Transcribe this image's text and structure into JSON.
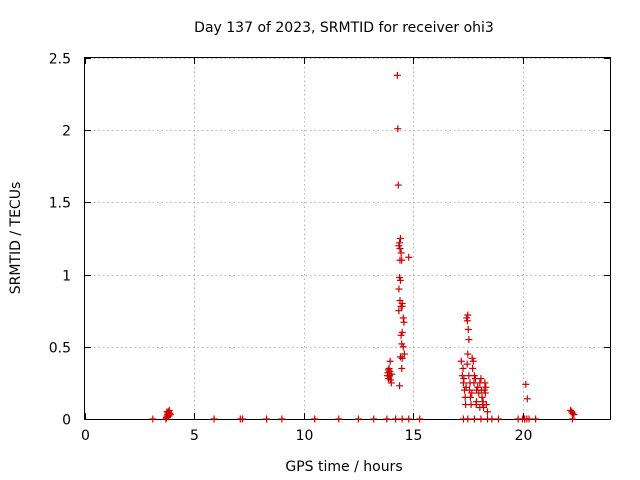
{
  "chart_data": {
    "type": "scatter",
    "title": "Day 137 of 2023, SRMTID for receiver ohi3",
    "xlabel": "GPS time / hours",
    "ylabel": "SRMTID / TECUs",
    "xlim": [
      0,
      24
    ],
    "ylim": [
      0,
      2.5
    ],
    "xticks": [
      0,
      5,
      10,
      15,
      20
    ],
    "yticks": [
      0,
      0.5,
      1,
      1.5,
      2,
      2.5
    ],
    "xtick_labels": [
      "0",
      "5",
      "10",
      "15",
      "20"
    ],
    "ytick_labels": [
      "0",
      "0.5",
      "1",
      "1.5",
      "2",
      "2.5"
    ],
    "grid": true,
    "marker": "+",
    "series": [
      {
        "name": "ohi3",
        "color": "#cc0000",
        "points": [
          [
            3.1,
            0.0
          ],
          [
            3.7,
            0.0
          ],
          [
            3.72,
            0.01
          ],
          [
            3.75,
            0.02
          ],
          [
            3.78,
            0.03
          ],
          [
            3.8,
            0.04
          ],
          [
            3.82,
            0.05
          ],
          [
            3.85,
            0.06
          ],
          [
            3.88,
            0.04
          ],
          [
            3.9,
            0.03
          ],
          [
            3.75,
            0.05
          ],
          [
            3.83,
            0.02
          ],
          [
            5.9,
            0.0
          ],
          [
            7.1,
            0.0
          ],
          [
            7.2,
            0.0
          ],
          [
            8.3,
            0.0
          ],
          [
            9.0,
            0.0
          ],
          [
            10.5,
            0.0
          ],
          [
            11.6,
            0.0
          ],
          [
            12.5,
            0.0
          ],
          [
            13.2,
            0.0
          ],
          [
            13.8,
            0.0
          ],
          [
            14.2,
            0.0
          ],
          [
            14.5,
            0.0
          ],
          [
            14.8,
            0.0
          ],
          [
            15.3,
            0.0
          ],
          [
            13.82,
            0.3
          ],
          [
            13.85,
            0.32
          ],
          [
            13.88,
            0.28
          ],
          [
            13.9,
            0.35
          ],
          [
            13.92,
            0.3
          ],
          [
            13.95,
            0.4
          ],
          [
            13.97,
            0.27
          ],
          [
            14.0,
            0.25
          ],
          [
            13.87,
            0.34
          ],
          [
            13.93,
            0.33
          ],
          [
            14.02,
            0.31
          ],
          [
            14.28,
            2.38
          ],
          [
            14.3,
            2.01
          ],
          [
            14.32,
            1.62
          ],
          [
            14.35,
            1.2
          ],
          [
            14.38,
            1.22
          ],
          [
            14.4,
            1.18
          ],
          [
            14.42,
            1.25
          ],
          [
            14.45,
            1.15
          ],
          [
            14.48,
            1.1
          ],
          [
            14.4,
            1.1
          ],
          [
            14.38,
            0.98
          ],
          [
            14.42,
            0.96
          ],
          [
            14.35,
            0.9
          ],
          [
            14.4,
            0.82
          ],
          [
            14.45,
            0.78
          ],
          [
            14.5,
            0.78
          ],
          [
            14.55,
            0.7
          ],
          [
            14.58,
            0.67
          ],
          [
            14.5,
            0.6
          ],
          [
            14.45,
            0.58
          ],
          [
            14.48,
            0.52
          ],
          [
            14.55,
            0.5
          ],
          [
            14.6,
            0.45
          ],
          [
            14.5,
            0.42
          ],
          [
            14.42,
            0.43
          ],
          [
            14.48,
            0.35
          ],
          [
            14.38,
            0.23
          ],
          [
            14.35,
            0.75
          ],
          [
            14.5,
            0.8
          ],
          [
            14.8,
            1.12
          ],
          [
            17.2,
            0.4
          ],
          [
            17.25,
            0.3
          ],
          [
            17.3,
            0.25
          ],
          [
            17.35,
            0.2
          ],
          [
            17.38,
            0.15
          ],
          [
            17.4,
            0.1
          ],
          [
            17.28,
            0.35
          ],
          [
            17.32,
            0.28
          ],
          [
            17.45,
            0.7
          ],
          [
            17.5,
            0.72
          ],
          [
            17.48,
            0.68
          ],
          [
            17.52,
            0.62
          ],
          [
            17.55,
            0.55
          ],
          [
            17.5,
            0.45
          ],
          [
            17.47,
            0.38
          ],
          [
            17.55,
            0.3
          ],
          [
            17.6,
            0.25
          ],
          [
            17.58,
            0.2
          ],
          [
            17.62,
            0.15
          ],
          [
            17.65,
            0.1
          ],
          [
            17.7,
            0.42
          ],
          [
            17.75,
            0.4
          ],
          [
            17.72,
            0.35
          ],
          [
            17.8,
            0.3
          ],
          [
            17.85,
            0.28
          ],
          [
            17.78,
            0.25
          ],
          [
            17.9,
            0.2
          ],
          [
            17.95,
            0.22
          ],
          [
            18.0,
            0.18
          ],
          [
            18.05,
            0.25
          ],
          [
            18.1,
            0.28
          ],
          [
            18.12,
            0.2
          ],
          [
            18.15,
            0.15
          ],
          [
            18.18,
            0.1
          ],
          [
            18.2,
            0.12
          ],
          [
            18.25,
            0.2
          ],
          [
            18.28,
            0.25
          ],
          [
            18.3,
            0.18
          ],
          [
            18.35,
            0.1
          ],
          [
            18.4,
            0.05
          ],
          [
            18.22,
            0.08
          ],
          [
            18.32,
            0.22
          ],
          [
            17.9,
            0.12
          ],
          [
            17.88,
            0.1
          ],
          [
            18.05,
            0.08
          ],
          [
            17.68,
            0.18
          ],
          [
            17.42,
            0.22
          ],
          [
            17.3,
            0.0
          ],
          [
            17.5,
            0.0
          ],
          [
            17.8,
            0.0
          ],
          [
            18.1,
            0.0
          ],
          [
            18.4,
            0.0
          ],
          [
            18.6,
            0.0
          ],
          [
            18.9,
            0.0
          ],
          [
            19.8,
            0.0
          ],
          [
            20.0,
            0.0
          ],
          [
            20.1,
            0.0
          ],
          [
            20.2,
            0.0
          ],
          [
            20.3,
            0.0
          ],
          [
            20.6,
            0.0
          ],
          [
            20.15,
            0.24
          ],
          [
            20.22,
            0.14
          ],
          [
            22.2,
            0.06
          ],
          [
            22.25,
            0.05
          ],
          [
            22.3,
            0.04
          ],
          [
            22.28,
            0.0
          ],
          [
            22.35,
            0.03
          ]
        ]
      }
    ]
  }
}
